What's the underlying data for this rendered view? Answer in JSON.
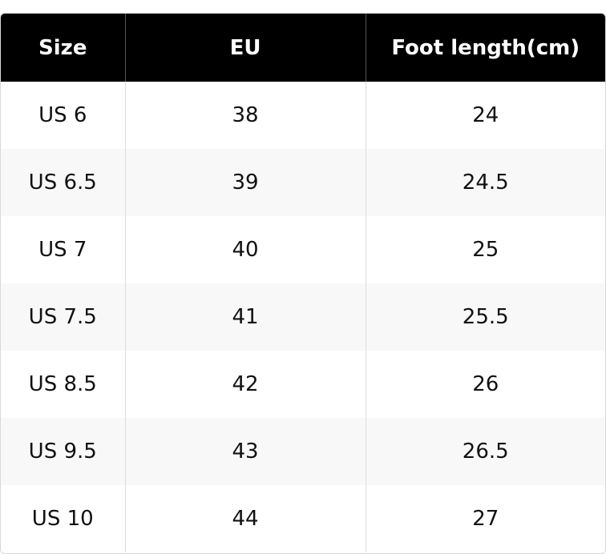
{
  "table": {
    "headers": [
      "Size",
      "EU",
      "Foot length(cm)"
    ],
    "rows": [
      [
        "US 6",
        "38",
        "24"
      ],
      [
        "US 6.5",
        "39",
        "24.5"
      ],
      [
        "US 7",
        "40",
        "25"
      ],
      [
        "US 7.5",
        "41",
        "25.5"
      ],
      [
        "US 8.5",
        "42",
        "26"
      ],
      [
        "US 9.5",
        "43",
        "26.5"
      ],
      [
        "US 10",
        "44",
        "27"
      ]
    ]
  }
}
